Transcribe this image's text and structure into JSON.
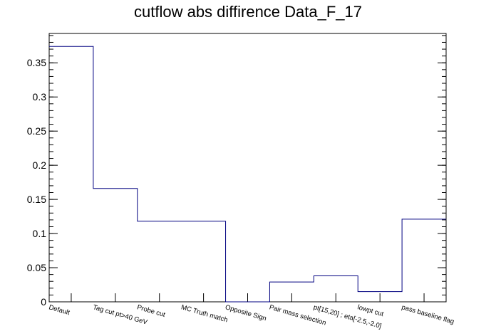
{
  "chart_data": {
    "type": "bar",
    "style": "step-histogram",
    "title": "cutflow abs diffirence Data_F_17",
    "categories": [
      "Default",
      "Tag cut pt>40 GeV",
      "Probe cut",
      "MC Truth match",
      "Opposite Sign",
      "Pair mass selection",
      "pt[15,20] ; eta[-2.5,-2.0]",
      "lowpt cut",
      "pass baseline flag"
    ],
    "values": [
      0.374,
      0.166,
      0.118,
      0.118,
      0.0,
      0.029,
      0.038,
      0.015,
      0.121
    ],
    "ylim": [
      0,
      0.393
    ],
    "yticks": [
      0,
      0.05,
      0.1,
      0.15,
      0.2,
      0.25,
      0.3,
      0.35
    ],
    "ytick_labels": [
      "0",
      "0.05",
      "0.1",
      "0.15",
      "0.2",
      "0.25",
      "0.3",
      "0.35"
    ],
    "xlabel": "",
    "ylabel": "",
    "grid": false,
    "line_color": "#000080",
    "axis_color": "#000000"
  }
}
